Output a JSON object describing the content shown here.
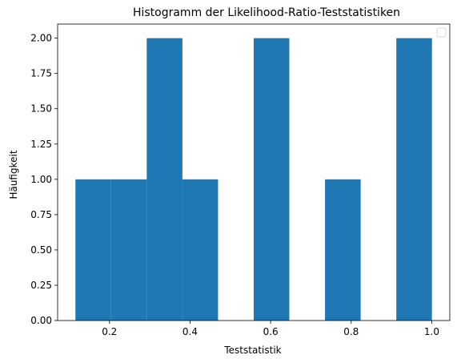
{
  "chart_data": {
    "type": "bar",
    "title": "Histogramm der Likelihood-Ratio-Teststatistiken",
    "xlabel": "Teststatistik",
    "ylabel": "Häufigkeit",
    "bin_edges": [
      0.1155,
      0.204,
      0.2925,
      0.381,
      0.4695,
      0.558,
      0.6465,
      0.735,
      0.8235,
      0.912,
      1.0005
    ],
    "values": [
      1,
      1,
      2,
      1,
      0,
      2,
      0,
      1,
      0,
      2
    ],
    "xlim": [
      0.0713,
      1.0448
    ],
    "ylim": [
      0,
      2.1
    ],
    "xticks": [
      0.2,
      0.4,
      0.6,
      0.8,
      1.0
    ],
    "xtick_labels": [
      "0.2",
      "0.4",
      "0.6",
      "0.8",
      "1.0"
    ],
    "yticks": [
      0,
      0.25,
      0.5,
      0.75,
      1.0,
      1.25,
      1.5,
      1.75,
      2.0
    ],
    "ytick_labels": [
      "0.00",
      "0.25",
      "0.50",
      "0.75",
      "1.00",
      "1.25",
      "1.50",
      "1.75",
      "2.00"
    ],
    "bar_color": "#1f77b4",
    "grid": false,
    "legend": {
      "placement": "top-right",
      "entries": []
    }
  }
}
